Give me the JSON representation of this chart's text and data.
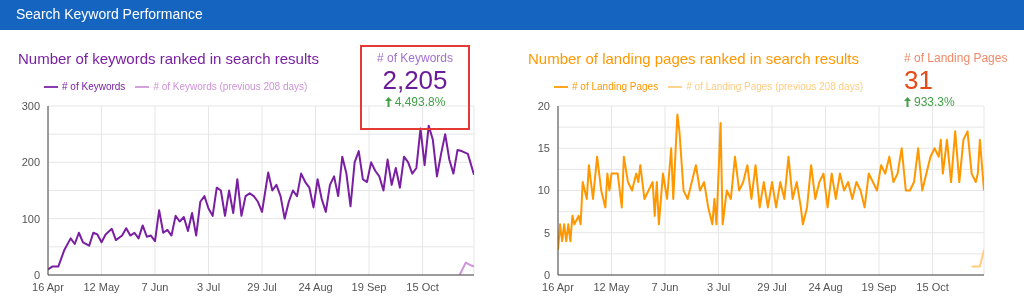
{
  "chart_data": [
    {
      "type": "other",
      "title": "Search Keyword Performance"
    },
    {
      "type": "line",
      "title": "Number of keywords ranked in search results",
      "legend": "top",
      "grid": true,
      "marker": "none",
      "line_style": "solid",
      "xlim": [
        "--04-16",
        "--11-09"
      ],
      "xticks": [
        {
          "value": "--04-16",
          "label": "16 Apr"
        },
        {
          "value": "--05-12",
          "label": "12 May"
        },
        {
          "value": "--06-07",
          "label": "7 Jun"
        },
        {
          "value": "--07-03",
          "label": "3 Jul"
        },
        {
          "value": "--07-29",
          "label": "29 Jul"
        },
        {
          "value": "--08-24",
          "label": "24 Aug"
        },
        {
          "value": "--09-19",
          "label": "19 Sep"
        },
        {
          "value": "--10-15",
          "label": "15 Oct"
        }
      ],
      "ylim": [
        0,
        300
      ],
      "yticks": [
        0,
        {
          "value": 50,
          "label": null
        },
        100,
        {
          "value": 150,
          "label": null
        },
        200,
        {
          "value": 250,
          "label": null
        },
        300
      ],
      "series": [
        {
          "name": "# of Keywords",
          "color": "#7b1fa2",
          "x": [
            "--04-16",
            "--04-18",
            "--04-21",
            "--04-24",
            "--04-27",
            "--04-29",
            "--05-01",
            "--05-03",
            "--05-06",
            "--05-08",
            "--05-10",
            "--05-12",
            "--05-14",
            "--05-17",
            "--05-19",
            "--05-22",
            "--05-24",
            "--05-26",
            "--05-28",
            "--05-30",
            "--06-01",
            "--06-03",
            "--06-05",
            "--06-07",
            "--06-09",
            "--06-11",
            "--06-13",
            "--06-15",
            "--06-17",
            "--06-19",
            "--06-21",
            "--06-23",
            "--06-25",
            "--06-27",
            "--06-29",
            "--07-01",
            "--07-03",
            "--07-05",
            "--07-07",
            "--07-09",
            "--07-11",
            "--07-13",
            "--07-15",
            "--07-17",
            "--07-19",
            "--07-21",
            "--07-23",
            "--07-25",
            "--07-27",
            "--07-29",
            "--08-01",
            "--08-03",
            "--08-05",
            "--08-07",
            "--08-09",
            "--08-11",
            "--08-13",
            "--08-15",
            "--08-17",
            "--08-19",
            "--08-21",
            "--08-23",
            "--08-25",
            "--08-27",
            "--08-29",
            "--08-31",
            "--09-02",
            "--09-04",
            "--09-06",
            "--09-08",
            "--09-10",
            "--09-12",
            "--09-14",
            "--09-16",
            "--09-18",
            "--09-20",
            "--09-22",
            "--09-24",
            "--09-26",
            "--09-28",
            "--09-30",
            "--10-02",
            "--10-04",
            "--10-06",
            "--10-08",
            "--10-10",
            "--10-12",
            "--10-14",
            "--10-16",
            "--10-18",
            "--10-20",
            "--10-22",
            "--10-24",
            "--10-26",
            "--10-28",
            "--10-30",
            "--11-01",
            "--11-03",
            "--11-06",
            "--11-09"
          ],
          "values": [
            10,
            15,
            15,
            45,
            65,
            55,
            75,
            58,
            52,
            75,
            72,
            58,
            72,
            82,
            62,
            70,
            83,
            70,
            75,
            65,
            88,
            68,
            70,
            60,
            115,
            75,
            80,
            70,
            105,
            95,
            103,
            78,
            110,
            70,
            130,
            140,
            118,
            105,
            155,
            150,
            105,
            150,
            110,
            170,
            105,
            140,
            145,
            140,
            130,
            112,
            182,
            150,
            160,
            140,
            100,
            130,
            150,
            140,
            180,
            165,
            155,
            120,
            170,
            135,
            112,
            160,
            175,
            140,
            210,
            180,
            122,
            200,
            220,
            170,
            165,
            200,
            185,
            175,
            150,
            205,
            160,
            190,
            155,
            210,
            200,
            180,
            190,
            260,
            195,
            265,
            240,
            175,
            215,
            250,
            205,
            180,
            222,
            220,
            215,
            178
          ]
        },
        {
          "name": "# of Keywords (previous 208 days)",
          "color": "#ce93d8",
          "x": [
            "--11-02",
            "--11-05",
            "--11-07",
            "--11-09"
          ],
          "values": [
            0,
            22,
            18,
            15
          ]
        }
      ]
    },
    {
      "type": "other",
      "title": "# of Keywords",
      "annotations": [
        "2,205",
        "4,493.8%"
      ]
    },
    {
      "type": "line",
      "title": "Number of landing pages ranked in search results",
      "legend": "top",
      "grid": true,
      "marker": "none",
      "line_style": "solid",
      "xlim": [
        "--04-16",
        "--11-09"
      ],
      "xticks": [
        {
          "value": "--04-16",
          "label": "16 Apr"
        },
        {
          "value": "--05-12",
          "label": "12 May"
        },
        {
          "value": "--06-07",
          "label": "7 Jun"
        },
        {
          "value": "--07-03",
          "label": "3 Jul"
        },
        {
          "value": "--07-29",
          "label": "29 Jul"
        },
        {
          "value": "--08-24",
          "label": "24 Aug"
        },
        {
          "value": "--09-19",
          "label": "19 Sep"
        },
        {
          "value": "--10-15",
          "label": "15 Oct"
        }
      ],
      "ylim": [
        0,
        20
      ],
      "yticks": [
        0,
        {
          "value": 2.5,
          "label": null
        },
        5,
        {
          "value": 7.5,
          "label": null
        },
        10,
        {
          "value": 12.5,
          "label": null
        },
        15,
        {
          "value": 17.5,
          "label": null
        },
        20
      ],
      "series": [
        {
          "name": "# of Landing Pages",
          "color": "#ff9800",
          "x": [
            "--04-16",
            "--04-17",
            "--04-18",
            "--04-19",
            "--04-20",
            "--04-21",
            "--04-22",
            "--04-23",
            "--04-24",
            "--04-26",
            "--04-27",
            "--04-28",
            "--04-30",
            "--05-01",
            "--05-03",
            "--05-05",
            "--05-07",
            "--05-09",
            "--05-10",
            "--05-11",
            "--05-12",
            "--05-15",
            "--05-17",
            "--05-18",
            "--05-20",
            "--05-22",
            "--05-24",
            "--05-25",
            "--05-26",
            "--05-28",
            "--05-30",
            "--06-01",
            "--06-02",
            "--06-03",
            "--06-04",
            "--06-06",
            "--06-08",
            "--06-10",
            "--06-11",
            "--06-13",
            "--06-14",
            "--06-16",
            "--06-18",
            "--06-20",
            "--06-22",
            "--06-24",
            "--06-26",
            "--06-28",
            "--06-30",
            "--07-01",
            "--07-02",
            "--07-04",
            "--07-05",
            "--07-07",
            "--07-09",
            "--07-11",
            "--07-13",
            "--07-15",
            "--07-17",
            "--07-19",
            "--07-21",
            "--07-23",
            "--07-25",
            "--07-27",
            "--07-29",
            "--07-31",
            "--08-02",
            "--08-04",
            "--08-06",
            "--08-08",
            "--08-10",
            "--08-12",
            "--08-13",
            "--08-15",
            "--08-17",
            "--08-19",
            "--08-21",
            "--08-23",
            "--08-25",
            "--08-27",
            "--08-29",
            "--08-31",
            "--09-02",
            "--09-04",
            "--09-06",
            "--09-08",
            "--09-10",
            "--09-12",
            "--09-14",
            "--09-16",
            "--09-18",
            "--09-20",
            "--09-22",
            "--09-24",
            "--09-26",
            "--09-28",
            "--09-30",
            "--10-02",
            "--10-04",
            "--10-06",
            "--10-08",
            "--10-10",
            "--10-12",
            "--10-14",
            "--10-16",
            "--10-18",
            "--10-19",
            "--10-20",
            "--10-22",
            "--10-24",
            "--10-26",
            "--10-28",
            "--10-30",
            "--11-01",
            "--11-03",
            "--11-05",
            "--11-06",
            "--11-07",
            "--11-09"
          ],
          "values": [
            3,
            6,
            4,
            6,
            4,
            6,
            4,
            7,
            6,
            7,
            6,
            11,
            9,
            13,
            9,
            14,
            10,
            8,
            12,
            10,
            12,
            12,
            8,
            14,
            11,
            10,
            12,
            11,
            13,
            9,
            10,
            11,
            7,
            11,
            6,
            12,
            9,
            15,
            9,
            19,
            17,
            10,
            9,
            11,
            13,
            10,
            11,
            8,
            6,
            9,
            6,
            18,
            6,
            10,
            9,
            14,
            10,
            11,
            13,
            9,
            13,
            8,
            11,
            8,
            11,
            8,
            11,
            9,
            14,
            9,
            11,
            8,
            6,
            8,
            13,
            9,
            11,
            12,
            8,
            12,
            9,
            12,
            10,
            11,
            9,
            11,
            10,
            8,
            12,
            11,
            10,
            13,
            12,
            14,
            11,
            12,
            15,
            10,
            10,
            11,
            15,
            10,
            12,
            14,
            15,
            14,
            16,
            12,
            16,
            11,
            17,
            11,
            16,
            17,
            12,
            11,
            12,
            16,
            10
          ]
        },
        {
          "name": "# of Landing Pages (previous 208 days)",
          "color": "#ffcc80",
          "x": [
            "--11-03",
            "--11-07",
            "--11-09"
          ],
          "values": [
            1,
            1,
            3
          ]
        }
      ]
    },
    {
      "type": "other",
      "title": "# of Landing Pages",
      "annotations": [
        "31",
        "933.3%"
      ]
    }
  ]
}
